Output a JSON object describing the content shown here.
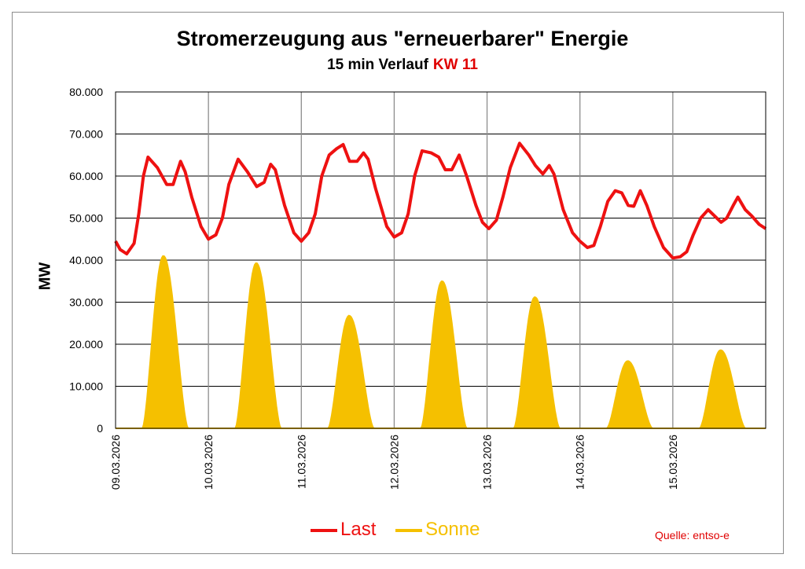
{
  "title": "Stromerzeugung aus \"erneuerbarer\" Energie",
  "subtitle_prefix": "15 min Verlauf",
  "subtitle_kw": "KW 11",
  "source": "Quelle: entso-e",
  "colors": {
    "last": "#ee1111",
    "sonne": "#f5c000",
    "kw": "#e00000"
  },
  "chart_data": {
    "type": "area",
    "title": "Stromerzeugung aus \"erneuerbarer\" Energie",
    "ylabel": "MW",
    "ylim": [
      0,
      80000
    ],
    "yticks": [
      0,
      10000,
      20000,
      30000,
      40000,
      50000,
      60000,
      70000,
      80000
    ],
    "ytick_labels": [
      "0",
      "10.000",
      "20.000",
      "30.000",
      "40.000",
      "50.000",
      "60.000",
      "70.000",
      "80.000"
    ],
    "xlim": [
      0,
      7
    ],
    "x_unit": "days since 09.03.2026 00:00",
    "x_tick_labels": [
      "09.03.2026",
      "10.03.2026",
      "11.03.2026",
      "12.03.2026",
      "13.03.2026",
      "14.03.2026",
      "15.03.2026"
    ],
    "legend": [
      "Last",
      "Sonne"
    ],
    "series": [
      {
        "name": "Last",
        "type": "line",
        "points": [
          [
            0.0,
            44500
          ],
          [
            0.05,
            42500
          ],
          [
            0.12,
            41500
          ],
          [
            0.2,
            44000
          ],
          [
            0.25,
            51000
          ],
          [
            0.3,
            60000
          ],
          [
            0.35,
            64500
          ],
          [
            0.45,
            62000
          ],
          [
            0.55,
            58000
          ],
          [
            0.62,
            58000
          ],
          [
            0.7,
            63500
          ],
          [
            0.75,
            61000
          ],
          [
            0.82,
            55000
          ],
          [
            0.92,
            48000
          ],
          [
            1.0,
            45000
          ],
          [
            1.08,
            46000
          ],
          [
            1.15,
            50000
          ],
          [
            1.22,
            58000
          ],
          [
            1.32,
            64000
          ],
          [
            1.42,
            61000
          ],
          [
            1.52,
            57500
          ],
          [
            1.6,
            58500
          ],
          [
            1.67,
            62800
          ],
          [
            1.72,
            61500
          ],
          [
            1.82,
            53000
          ],
          [
            1.92,
            46500
          ],
          [
            2.0,
            44500
          ],
          [
            2.08,
            46500
          ],
          [
            2.15,
            51000
          ],
          [
            2.22,
            60000
          ],
          [
            2.3,
            65000
          ],
          [
            2.38,
            66500
          ],
          [
            2.45,
            67500
          ],
          [
            2.52,
            63500
          ],
          [
            2.6,
            63500
          ],
          [
            2.67,
            65500
          ],
          [
            2.72,
            64000
          ],
          [
            2.8,
            57000
          ],
          [
            2.92,
            48000
          ],
          [
            3.0,
            45500
          ],
          [
            3.08,
            46500
          ],
          [
            3.15,
            51000
          ],
          [
            3.22,
            60000
          ],
          [
            3.3,
            66000
          ],
          [
            3.4,
            65500
          ],
          [
            3.48,
            64500
          ],
          [
            3.55,
            61500
          ],
          [
            3.62,
            61500
          ],
          [
            3.7,
            65000
          ],
          [
            3.78,
            60000
          ],
          [
            3.88,
            53000
          ],
          [
            3.95,
            49000
          ],
          [
            4.02,
            47500
          ],
          [
            4.1,
            49500
          ],
          [
            4.17,
            55000
          ],
          [
            4.25,
            62000
          ],
          [
            4.35,
            67800
          ],
          [
            4.45,
            65000
          ],
          [
            4.52,
            62500
          ],
          [
            4.6,
            60500
          ],
          [
            4.67,
            62500
          ],
          [
            4.72,
            60500
          ],
          [
            4.82,
            52000
          ],
          [
            4.92,
            46500
          ],
          [
            5.0,
            44500
          ],
          [
            5.08,
            43000
          ],
          [
            5.15,
            43500
          ],
          [
            5.22,
            48000
          ],
          [
            5.3,
            54000
          ],
          [
            5.38,
            56500
          ],
          [
            5.45,
            56000
          ],
          [
            5.52,
            53000
          ],
          [
            5.58,
            52800
          ],
          [
            5.65,
            56500
          ],
          [
            5.72,
            53000
          ],
          [
            5.8,
            48000
          ],
          [
            5.9,
            43000
          ],
          [
            6.0,
            40500
          ],
          [
            6.08,
            40800
          ],
          [
            6.15,
            42000
          ],
          [
            6.22,
            46000
          ],
          [
            6.3,
            50000
          ],
          [
            6.38,
            52000
          ],
          [
            6.45,
            50500
          ],
          [
            6.52,
            49000
          ],
          [
            6.58,
            50000
          ],
          [
            6.65,
            53000
          ],
          [
            6.7,
            55000
          ],
          [
            6.78,
            52000
          ],
          [
            6.85,
            50500
          ],
          [
            6.93,
            48500
          ],
          [
            7.0,
            47500
          ]
        ]
      },
      {
        "name": "Sonne",
        "type": "area",
        "daily_peaks_MW": [
          41000,
          39300,
          26800,
          35000,
          31200,
          16000,
          18600
        ],
        "sunrise_day_fraction": 0.29,
        "sunset_day_fraction": 0.78,
        "peak_day_fraction": 0.515
      }
    ]
  },
  "legend_labels": {
    "last": "Last",
    "sonne": "Sonne"
  }
}
